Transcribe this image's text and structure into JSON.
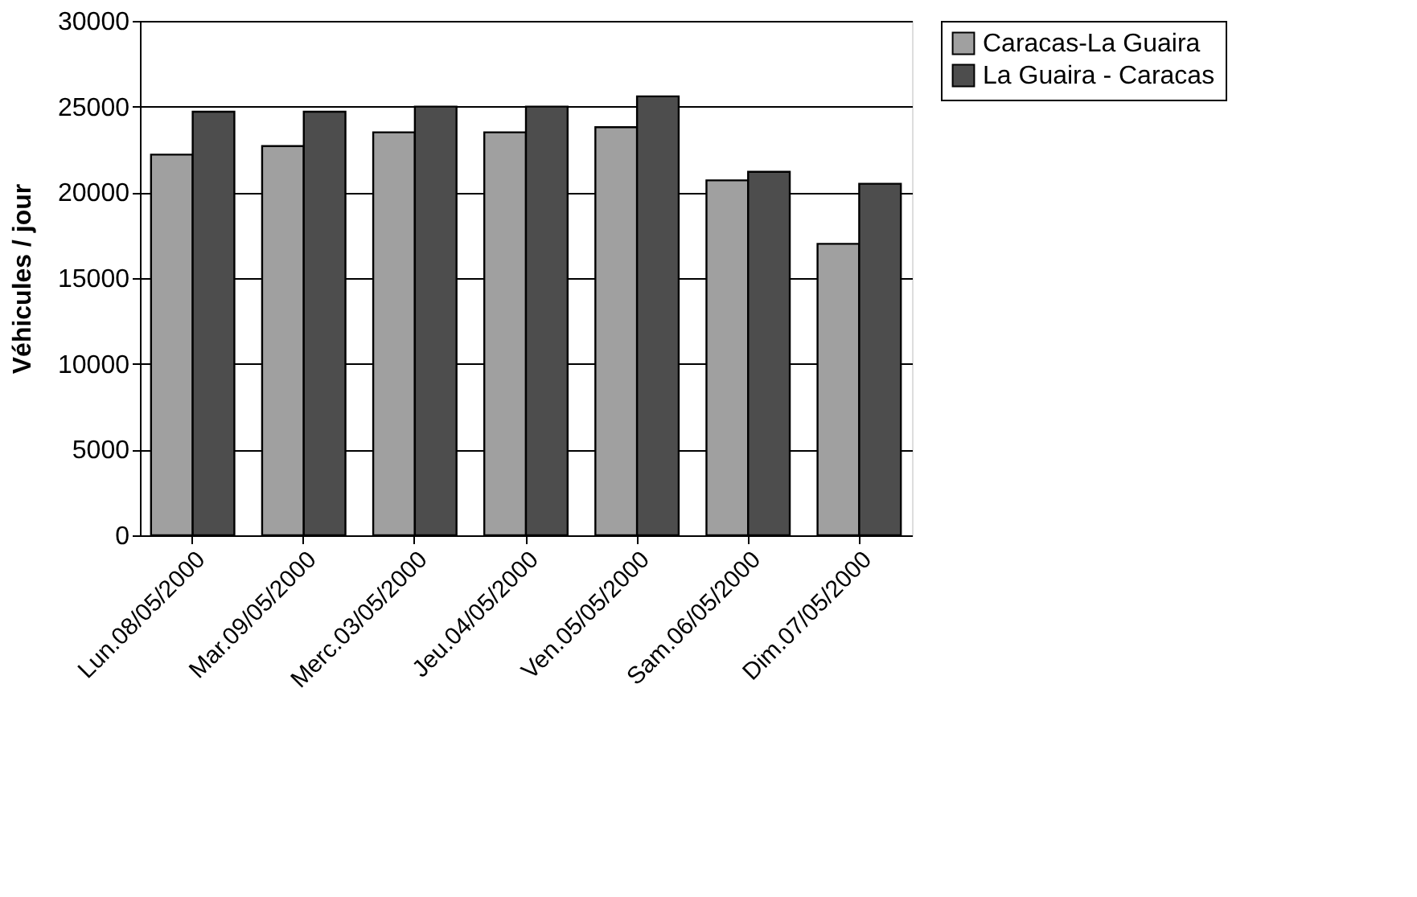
{
  "chart_data": {
    "type": "bar",
    "ylabel": "Véhicules / jour",
    "categories": [
      "Lun.08/05/2000",
      "Mar.09/05/2000",
      "Merc.03/05/2000",
      "Jeu.04/05/2000",
      "Ven.05/05/2000",
      "Sam.06/05/2000",
      "Dim.07/05/2000"
    ],
    "series": [
      {
        "name": "Caracas-La Guaira",
        "color": "#a0a0a0",
        "values": [
          22200,
          22700,
          23500,
          23500,
          23800,
          20700,
          17000
        ]
      },
      {
        "name": "La Guaira - Caracas",
        "color": "#4d4d4d",
        "values": [
          24700,
          24700,
          25000,
          25000,
          25600,
          21200,
          20500
        ]
      }
    ],
    "ylim": [
      0,
      30000
    ],
    "yticks": [
      0,
      5000,
      10000,
      15000,
      20000,
      25000,
      30000
    ],
    "grid": "y",
    "legend": "right"
  }
}
